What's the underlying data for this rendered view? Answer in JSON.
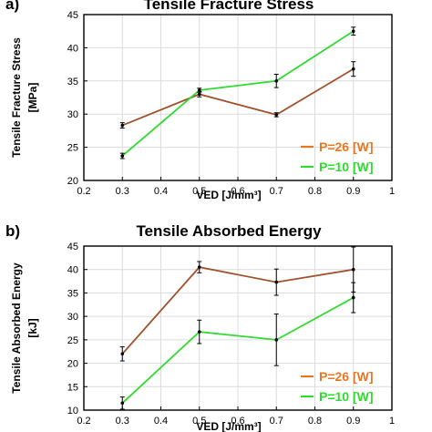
{
  "chart_data": [
    {
      "type": "line",
      "panel_label": "a)",
      "title": "Tensile Fracture Stress",
      "xlabel": "VED [J/mm³]",
      "ylabel": "Tensile Fracture Stress",
      "ylabel_unit": "[MPa]",
      "xlim": [
        0.2,
        1.0
      ],
      "ylim": [
        20,
        45
      ],
      "xticks": [
        0.2,
        0.3,
        0.4,
        0.5,
        0.6,
        0.7,
        0.8,
        0.9,
        1.0
      ],
      "xtick_labels": [
        "0.2",
        "0.3",
        "0.4",
        "0.5",
        "0.6",
        "0.7",
        "0.8",
        "0.9",
        "1"
      ],
      "yticks": [
        20,
        25,
        30,
        35,
        40,
        45
      ],
      "yticks_labels": [
        "20",
        "25",
        "30",
        "35",
        "40",
        "45"
      ],
      "grid": true,
      "legend_position": "bottom-right",
      "x": [
        0.3,
        0.5,
        0.7,
        0.9
      ],
      "series": [
        {
          "name": "P=26 [W]",
          "color": "#A0522D",
          "legend_color": "#E87722",
          "values": [
            28.3,
            33.0,
            29.9,
            36.8
          ],
          "errors": [
            0.4,
            0.4,
            0.3,
            1.1
          ]
        },
        {
          "name": "P=10 [W]",
          "color": "#2EDB2E",
          "legend_color": "#2EDB2E",
          "values": [
            23.7,
            33.6,
            35.0,
            42.5
          ],
          "errors": [
            0.4,
            0.3,
            1.0,
            0.6
          ]
        }
      ]
    },
    {
      "type": "line",
      "panel_label": "b)",
      "title": "Tensile Absorbed Energy",
      "xlabel": "VED [J/mm³]",
      "ylabel": "Tensile Absorbed Energy",
      "ylabel_unit": "[kJ]",
      "xlim": [
        0.2,
        1.0
      ],
      "ylim": [
        10,
        45
      ],
      "xticks": [
        0.2,
        0.3,
        0.4,
        0.5,
        0.6,
        0.7,
        0.8,
        0.9,
        1.0
      ],
      "xtick_labels": [
        "0.2",
        "0.3",
        "0.4",
        "0.5",
        "0.6",
        "0.7",
        "0.8",
        "0.9",
        "1"
      ],
      "yticks": [
        10,
        15,
        20,
        25,
        30,
        35,
        40,
        45
      ],
      "yticks_labels": [
        "10",
        "15",
        "20",
        "25",
        "30",
        "35",
        "40",
        "45"
      ],
      "grid": true,
      "legend_position": "bottom-right",
      "x": [
        0.3,
        0.5,
        0.7,
        0.9
      ],
      "series": [
        {
          "name": "P=26 [W]",
          "color": "#A0522D",
          "legend_color": "#E87722",
          "values": [
            22.0,
            40.5,
            37.3,
            40.0
          ],
          "errors": [
            1.5,
            1.2,
            2.8,
            4.8
          ]
        },
        {
          "name": "P=10 [W]",
          "color": "#2EDB2E",
          "legend_color": "#2EDB2E",
          "values": [
            11.5,
            26.7,
            25.0,
            34.0
          ],
          "errors": [
            1.3,
            2.5,
            5.5,
            3.2
          ]
        }
      ]
    }
  ]
}
